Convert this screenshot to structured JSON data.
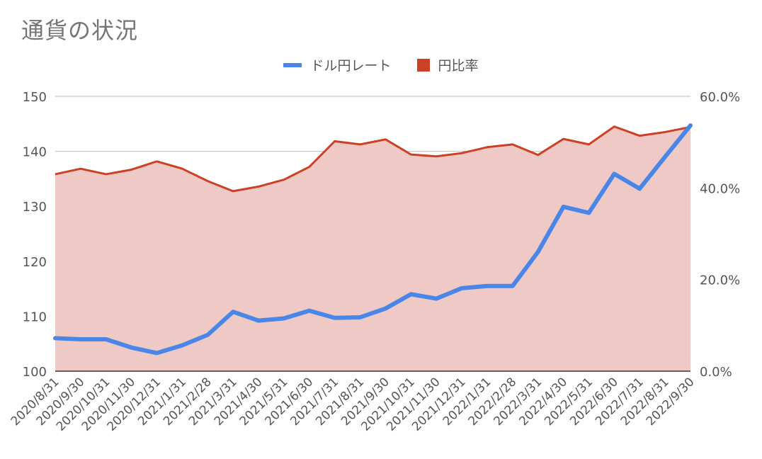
{
  "chart_data": {
    "type": "line",
    "title": "通貨の状況",
    "legend_position": "top",
    "grid": true,
    "colors": {
      "rate": "#4a86e8",
      "ratio": "#cc4125",
      "ratio_fill": "#efc9c6",
      "grid": "#c8c8c8"
    },
    "categories": [
      "2020/8/31",
      "2020/9/30",
      "2020/10/31",
      "2020/11/30",
      "2020/12/31",
      "2021/1/31",
      "2021/2/28",
      "2021/3/31",
      "2021/4/30",
      "2021/5/31",
      "2021/6/30",
      "2021/7/31",
      "2021/8/31",
      "2021/9/30",
      "2021/10/31",
      "2021/11/30",
      "2021/12/31",
      "2022/1/31",
      "2022/2/28",
      "2022/3/31",
      "2022/4/30",
      "2022/5/31",
      "2022/6/30",
      "2022/7/31",
      "2022/8/31",
      "2022/9/30"
    ],
    "left_axis": {
      "ylim": [
        100,
        150
      ],
      "ticks": [
        "100",
        "110",
        "120",
        "130",
        "140",
        "150"
      ]
    },
    "right_axis": {
      "ylim": [
        0,
        60
      ],
      "ticks": [
        "0.0%",
        "20.0%",
        "40.0%",
        "60.0%"
      ]
    },
    "series": [
      {
        "name": "ドル円レート",
        "type": "line",
        "axis": "left",
        "values": [
          106.0,
          105.8,
          105.8,
          104.3,
          103.3,
          104.7,
          106.6,
          110.8,
          109.2,
          109.6,
          111.0,
          109.7,
          109.8,
          111.4,
          114.0,
          113.2,
          115.1,
          115.5,
          115.5,
          121.7,
          129.9,
          128.8,
          135.9,
          133.2,
          139.0,
          144.7
        ]
      },
      {
        "name": "円比率",
        "type": "area",
        "axis": "right",
        "values": [
          43.0,
          44.2,
          43.0,
          44.0,
          45.8,
          44.2,
          41.5,
          39.3,
          40.3,
          41.8,
          44.6,
          50.2,
          49.5,
          50.6,
          47.3,
          46.9,
          47.6,
          48.9,
          49.5,
          47.2,
          50.7,
          49.5,
          53.4,
          51.4,
          52.2,
          53.3
        ]
      }
    ]
  }
}
